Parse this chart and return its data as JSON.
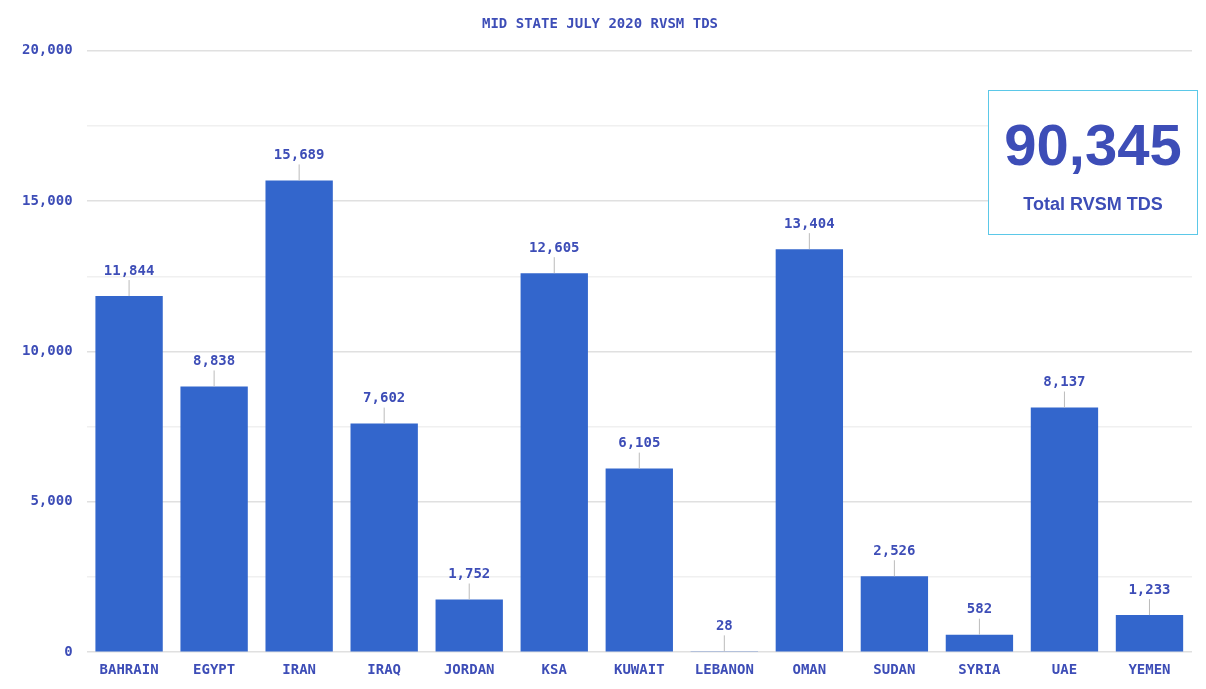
{
  "chart_data": {
    "type": "bar",
    "title": "MID STATE JULY 2020 RVSM TDS",
    "categories": [
      "BAHRAIN",
      "EGYPT",
      "IRAN",
      "IRAQ",
      "JORDAN",
      "KSA",
      "KUWAIT",
      "LEBANON",
      "OMAN",
      "SUDAN",
      "SYRIA",
      "UAE",
      "YEMEN"
    ],
    "values": [
      11844,
      8838,
      15689,
      7602,
      1752,
      12605,
      6105,
      28,
      13404,
      2526,
      582,
      8137,
      1233
    ],
    "value_labels": [
      "11,844",
      "8,838",
      "15,689",
      "7,602",
      "1,752",
      "12,605",
      "6,105",
      "28",
      "13,404",
      "2,526",
      "582",
      "8,137",
      "1,233"
    ],
    "color": "#3366cc",
    "ylim": [
      0,
      20000
    ],
    "yticks": [
      {
        "value": 0,
        "label": "0"
      },
      {
        "value": 2500,
        "label": null
      },
      {
        "value": 5000,
        "label": "5,000"
      },
      {
        "value": 7500,
        "label": null
      },
      {
        "value": 10000,
        "label": "10,000"
      },
      {
        "value": 12500,
        "label": null
      },
      {
        "value": 15000,
        "label": "15,000"
      },
      {
        "value": 17500,
        "label": null
      },
      {
        "value": 20000,
        "label": "20,000"
      }
    ],
    "grid": "y",
    "annotations": [
      "90,345",
      "Total RVSM TDS"
    ]
  }
}
